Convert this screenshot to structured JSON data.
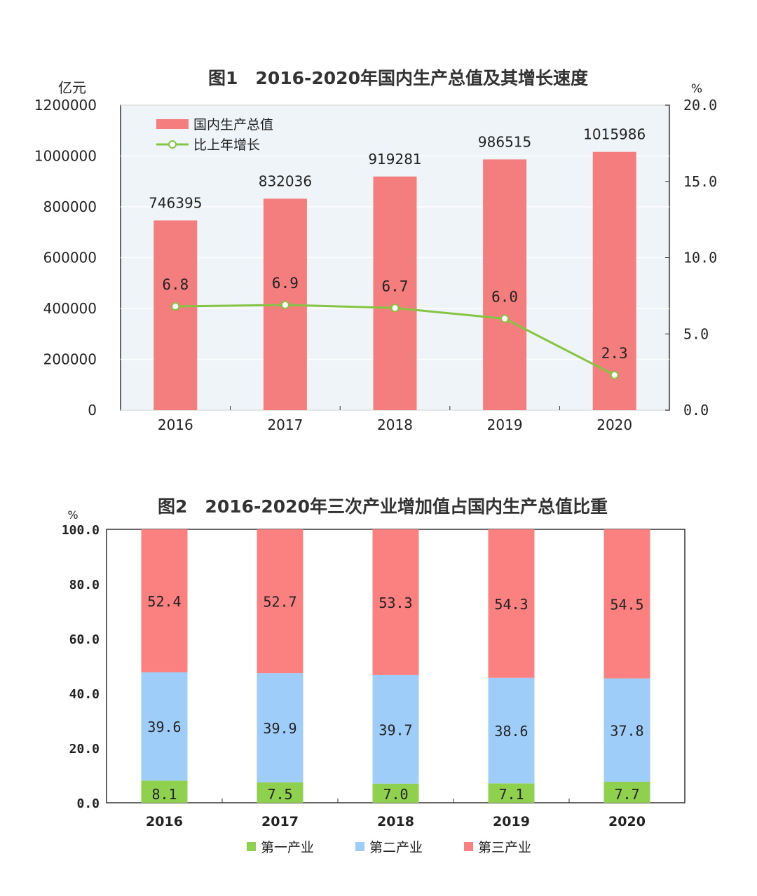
{
  "chart_data": [
    {
      "type": "bar+line",
      "title": "图1　2016-2020年国内生产总值及其增长速度",
      "ylabel": "亿元",
      "y2label": "%",
      "categories": [
        "2016",
        "2017",
        "2018",
        "2019",
        "2020"
      ],
      "ylim": [
        0,
        1200000
      ],
      "yticks": [
        0,
        200000,
        400000,
        600000,
        800000,
        1000000,
        1200000
      ],
      "y2lim": [
        0,
        20
      ],
      "y2ticks": [
        "0.0",
        "5.0",
        "10.0",
        "15.0",
        "20.0"
      ],
      "series": [
        {
          "name": "国内生产总值",
          "type": "bar",
          "axis": "left",
          "color": "#f47e7e",
          "values": [
            746395,
            832036,
            919281,
            986515,
            1015986
          ]
        },
        {
          "name": "比上年增长",
          "type": "line",
          "axis": "right",
          "color": "#86c443",
          "values": [
            6.8,
            6.9,
            6.7,
            6.0,
            2.3
          ],
          "labels": [
            "6.8",
            "6.9",
            "6.7",
            "6.0",
            "2.3"
          ]
        }
      ],
      "legend": "top-left",
      "background": "#eef4f7"
    },
    {
      "type": "stacked-bar",
      "title": "图2　2016-2020年三次产业增加值占国内生产总值比重",
      "ylabel": "%",
      "categories": [
        "2016",
        "2017",
        "2018",
        "2019",
        "2020"
      ],
      "ylim": [
        0,
        100
      ],
      "yticks": [
        "0.0",
        "20.0",
        "40.0",
        "60.0",
        "80.0",
        "100.0"
      ],
      "series": [
        {
          "name": "第一产业",
          "color": "#8fd14f",
          "values": [
            8.1,
            7.5,
            7.0,
            7.1,
            7.7
          ],
          "labels": [
            "8.1",
            "7.5",
            "7.0",
            "7.1",
            "7.7"
          ]
        },
        {
          "name": "第二产业",
          "color": "#9fcdfa",
          "values": [
            39.6,
            39.9,
            39.7,
            38.6,
            37.8
          ],
          "labels": [
            "39.6",
            "39.9",
            "39.7",
            "38.6",
            "37.8"
          ]
        },
        {
          "name": "第三产业",
          "color": "#fb8080",
          "values": [
            52.4,
            52.7,
            53.3,
            54.3,
            54.5
          ],
          "labels": [
            "52.4",
            "52.7",
            "53.3",
            "54.3",
            "54.5"
          ]
        }
      ],
      "legend": "bottom"
    }
  ]
}
